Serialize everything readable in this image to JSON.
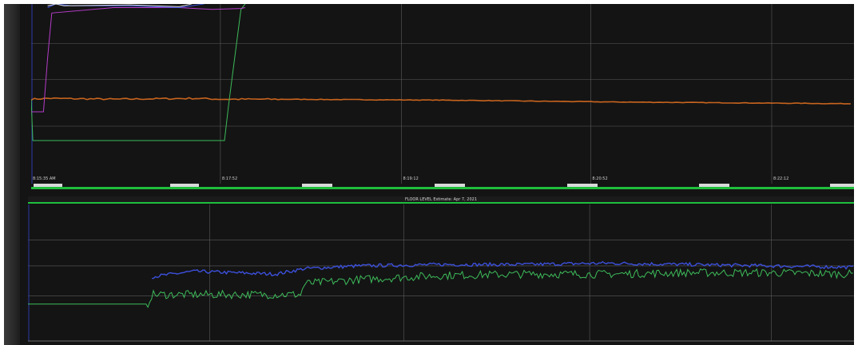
{
  "chart_data": [
    {
      "type": "line",
      "title": "",
      "xlabel": "",
      "ylabel": "",
      "grid": true,
      "legend": "none",
      "x_tick_labels": [
        "8:15:35 AM",
        "8:17:52",
        "8:19:12",
        "8:20:52",
        "8:22:12"
      ],
      "xlim": [
        0,
        100
      ],
      "ylim": [
        0,
        100
      ],
      "colors": {
        "background": "#141414",
        "grid": "#5a5a5a",
        "orange": "#c8641e",
        "green": "#3dbb5a",
        "magenta": "#b43cc8",
        "blue": "#3c50dc",
        "white": "#dcdcdc"
      },
      "series": [
        {
          "color": "#c8641e",
          "x": [
            0,
            2,
            10,
            20,
            23,
            30,
            50,
            70,
            100
          ],
          "y": [
            47,
            47.5,
            47,
            47.5,
            47,
            47,
            46.5,
            45.5,
            44.5
          ]
        },
        {
          "color": "#3dbb5a",
          "x": [
            0,
            0.2,
            23.5,
            24,
            25.5,
            26
          ],
          "y": [
            47,
            24,
            24,
            44,
            97,
            100
          ]
        },
        {
          "color": "#b43cc8",
          "x": [
            0,
            1.5,
            2,
            2.5,
            10,
            18,
            22,
            25.5,
            26
          ],
          "y": [
            40,
            40,
            70,
            95,
            98,
            98,
            97,
            97.5,
            98
          ]
        },
        {
          "color": "#3c50dc",
          "x": [
            2,
            3,
            5,
            12,
            18,
            21
          ],
          "y": [
            98,
            100,
            99,
            99,
            98,
            100
          ]
        },
        {
          "color": "#dcdcdc",
          "x": [
            2,
            3,
            4,
            12,
            18,
            19.5
          ],
          "y": [
            99,
            100,
            99,
            99.5,
            98.5,
            100
          ]
        }
      ]
    },
    {
      "type": "line",
      "title": "FLOOR LEVEL    Estimate: Apr 7, 2021",
      "xlabel": "",
      "ylabel": "",
      "grid": true,
      "legend": "none",
      "xlim": [
        0,
        100
      ],
      "ylim": [
        0,
        100
      ],
      "series": [
        {
          "color": "#3dbb5a",
          "x": [
            0,
            6,
            14.5,
            15,
            33,
            33.5,
            40,
            50,
            60,
            70,
            80,
            90,
            100
          ],
          "y": [
            27,
            27,
            27,
            34,
            34,
            42,
            45,
            48,
            49,
            49,
            50,
            50,
            49
          ]
        },
        {
          "color": "#3c50dc",
          "x": [
            15,
            20,
            30,
            33.5,
            40,
            50,
            60,
            70,
            80,
            90,
            100
          ],
          "y": [
            47,
            51,
            49,
            53,
            55,
            56,
            56,
            57,
            56,
            55,
            54
          ]
        }
      ]
    }
  ]
}
